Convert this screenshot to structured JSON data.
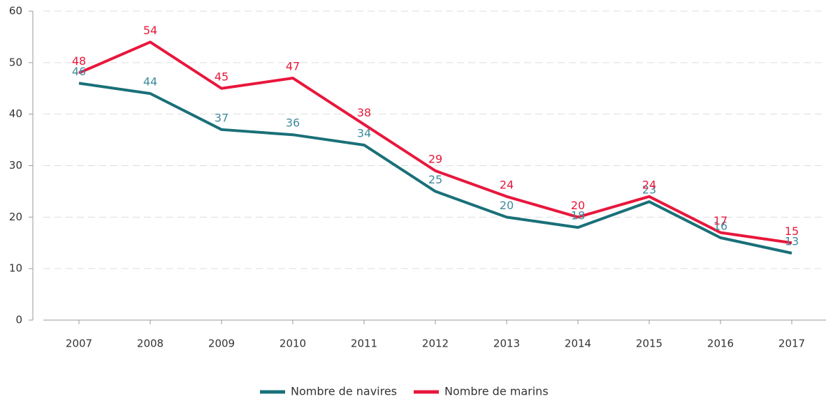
{
  "chart_data": {
    "type": "line",
    "categories": [
      "2007",
      "2008",
      "2009",
      "2010",
      "2011",
      "2012",
      "2013",
      "2014",
      "2015",
      "2016",
      "2017"
    ],
    "series": [
      {
        "name": "Nombre de navires",
        "color": "#1a7078",
        "label_color": "#3f8b9c",
        "values": [
          46,
          44,
          37,
          36,
          34,
          25,
          20,
          18,
          23,
          16,
          13
        ]
      },
      {
        "name": "Nombre de marins",
        "color": "#e8173c",
        "label_color": "#e8173c",
        "values": [
          48,
          54,
          45,
          47,
          38,
          29,
          24,
          20,
          24,
          17,
          15
        ]
      }
    ],
    "ylim": [
      0,
      60
    ],
    "yticks": [
      0,
      10,
      20,
      30,
      40,
      50,
      60
    ],
    "grid": true,
    "legend": "bottom"
  }
}
